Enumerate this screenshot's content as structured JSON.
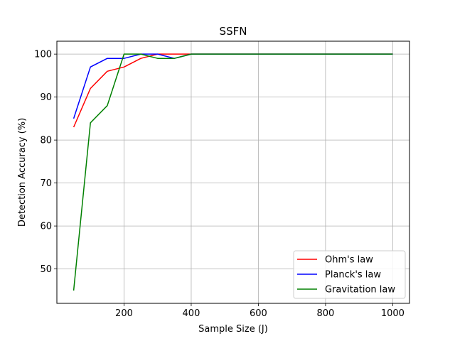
{
  "chart_data": {
    "type": "line",
    "title": "SSFN",
    "xlabel": "Sample Size (J)",
    "ylabel": "Detection Accuracy (%)",
    "xlim": [
      0,
      1050
    ],
    "ylim": [
      42,
      103
    ],
    "xticks": [
      200,
      400,
      600,
      800,
      1000
    ],
    "yticks": [
      50,
      60,
      70,
      80,
      90,
      100
    ],
    "grid": true,
    "legend_position": "lower-right",
    "x": [
      50,
      100,
      150,
      200,
      250,
      300,
      350,
      400,
      450,
      500,
      550,
      600,
      650,
      700,
      750,
      800,
      850,
      900,
      950,
      1000
    ],
    "series": [
      {
        "name": "Ohm's law",
        "color": "#ff0000",
        "values": [
          83,
          92,
          96,
          97,
          99,
          100,
          100,
          100,
          100,
          100,
          100,
          100,
          100,
          100,
          100,
          100,
          100,
          100,
          100,
          100
        ]
      },
      {
        "name": "Planck's law",
        "color": "#0000ff",
        "values": [
          85,
          97,
          99,
          99,
          100,
          100,
          99,
          100,
          100,
          100,
          100,
          100,
          100,
          100,
          100,
          100,
          100,
          100,
          100,
          100
        ]
      },
      {
        "name": "Gravitation law",
        "color": "#008000",
        "values": [
          45,
          84,
          88,
          100,
          100,
          99,
          99,
          100,
          100,
          100,
          100,
          100,
          100,
          100,
          100,
          100,
          100,
          100,
          100,
          100
        ]
      }
    ]
  }
}
